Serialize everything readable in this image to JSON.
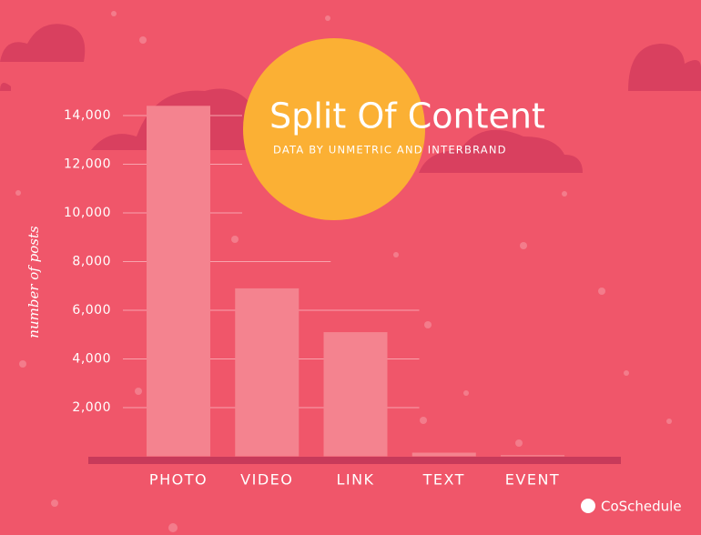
{
  "chart_data": {
    "type": "bar",
    "title": "Split Of Content",
    "subtitle": "DATA BY UNMETRIC AND INTERBRAND",
    "y_label": "number of posts",
    "categories": [
      "PHOTO",
      "VIDEO",
      "LINK",
      "TEXT",
      "EVENT"
    ],
    "values": [
      14400,
      6900,
      5100,
      150,
      50
    ],
    "color": "#f4838f",
    "ylim": [
      0,
      15000
    ],
    "yticks": [
      {
        "value": 2000,
        "label": "2,000"
      },
      {
        "value": 4000,
        "label": "4,000"
      },
      {
        "value": 6000,
        "label": "6,000"
      },
      {
        "value": 8000,
        "label": "8,000"
      },
      {
        "value": 10000,
        "label": "10,000"
      },
      {
        "value": 12000,
        "label": "12,000"
      },
      {
        "value": 14000,
        "label": "14,000"
      }
    ],
    "grid": true,
    "brand": "CoSchedule"
  }
}
